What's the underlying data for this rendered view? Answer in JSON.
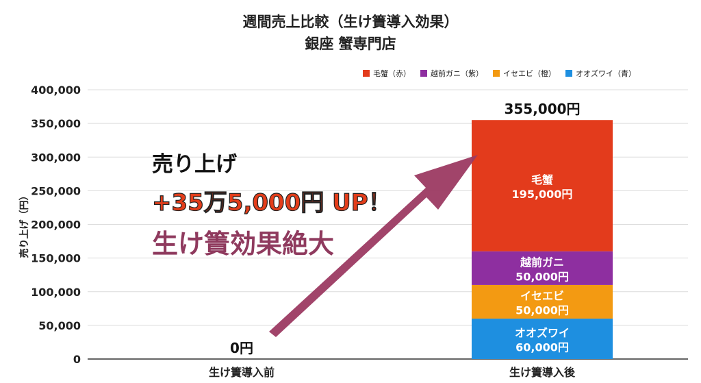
{
  "chart_data": {
    "type": "bar",
    "stacked": true,
    "title": "週間売上比較（生け簀導入効果）",
    "subtitle": "銀座 蟹専門店",
    "ylabel": "売り上げ（円）",
    "xlabel": "",
    "ylim": [
      0,
      400000
    ],
    "yticks": [
      0,
      50000,
      100000,
      150000,
      200000,
      250000,
      300000,
      350000,
      400000
    ],
    "ytick_labels": [
      "0",
      "50,000",
      "100,000",
      "150,000",
      "200,000",
      "250,000",
      "300,000",
      "350,000",
      "400,000"
    ],
    "categories": [
      "生け簀導入前",
      "生け簀導入後"
    ],
    "grid": true,
    "legend_position": "top-right",
    "series": [
      {
        "name": "オオズワイ（青）",
        "short": "オオズワイ",
        "value_label": "60,000円",
        "color": "#1e8fe0",
        "values": [
          0,
          60000
        ]
      },
      {
        "name": "イセエビ（橙）",
        "short": "イセエビ",
        "value_label": "50,000円",
        "color": "#f39a12",
        "values": [
          0,
          50000
        ]
      },
      {
        "name": "越前ガニ（紫）",
        "short": "越前ガニ",
        "value_label": "50,000円",
        "color": "#8e2fa0",
        "values": [
          0,
          50000
        ]
      },
      {
        "name": "毛蟹（赤）",
        "short": "毛蟹",
        "value_label": "195,000円",
        "color": "#e33b1c",
        "values": [
          0,
          195000
        ]
      }
    ],
    "totals": [
      0,
      355000
    ],
    "total_labels": [
      "0円",
      "355,000円"
    ],
    "legend_order": [
      3,
      2,
      1,
      0
    ],
    "annotations": {
      "line1": "売り上げ",
      "line2": "+35万5,000円 UP！",
      "line3": "生け簀効果絶大",
      "arrow_color": "#9c3a62"
    }
  }
}
